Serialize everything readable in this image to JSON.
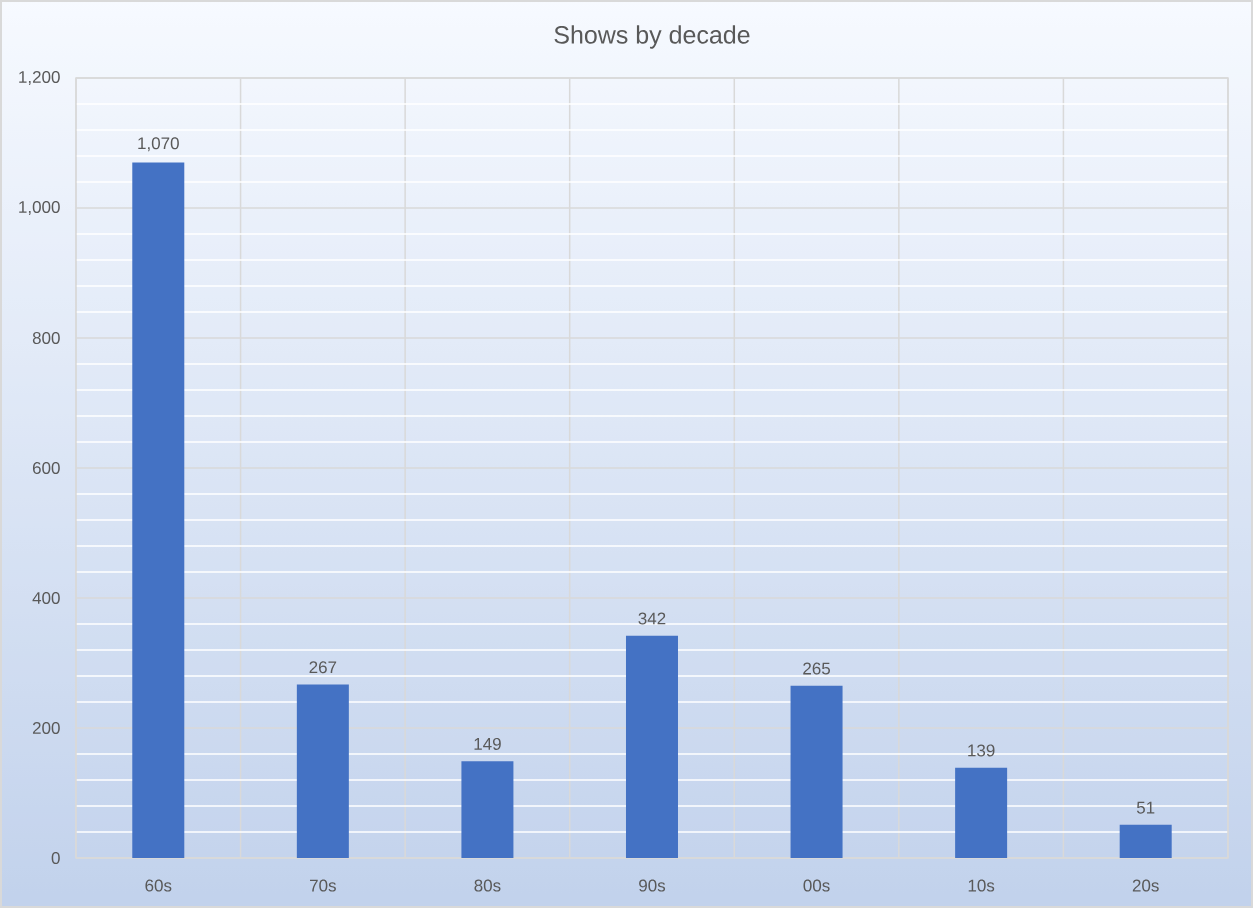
{
  "chart_data": {
    "type": "bar",
    "title": "Shows by decade",
    "categories": [
      "60s",
      "70s",
      "80s",
      "90s",
      "00s",
      "10s",
      "20s"
    ],
    "values": [
      1070,
      267,
      149,
      342,
      265,
      139,
      51
    ],
    "color": "#4472c4",
    "value_labels": [
      "1,070",
      "267",
      "149",
      "342",
      "265",
      "139",
      "51"
    ],
    "ylim": [
      0,
      1200
    ],
    "yticks": [
      0,
      200,
      400,
      600,
      800,
      {
        "value": 1000,
        "label": "1,000"
      },
      {
        "value": 1200,
        "label": "1,200"
      }
    ],
    "grid": true
  }
}
